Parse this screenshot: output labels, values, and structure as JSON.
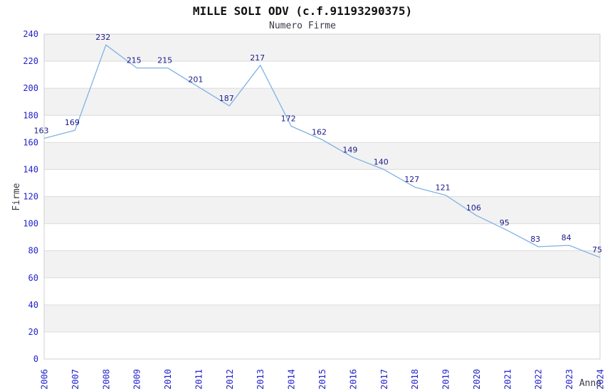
{
  "chart_data": {
    "type": "line",
    "title": "MILLE SOLI ODV (c.f.91193290375)",
    "subtitle": "Numero Firme",
    "xlabel": "Anno",
    "ylabel": "Firme",
    "x": [
      2006,
      2007,
      2008,
      2009,
      2010,
      2011,
      2012,
      2013,
      2014,
      2015,
      2016,
      2017,
      2018,
      2019,
      2020,
      2021,
      2022,
      2023,
      2024
    ],
    "series": [
      {
        "name": "Numero Firme",
        "values": [
          163,
          169,
          232,
          215,
          215,
          201,
          187,
          217,
          172,
          162,
          149,
          140,
          127,
          121,
          106,
          95,
          83,
          84,
          75
        ]
      }
    ],
    "point_labels_visible": true,
    "ylim": [
      0,
      240
    ],
    "ytick_step": 20,
    "grid": "horizontal-only",
    "legend_position": "none",
    "colors": {
      "line": "#7fb2e6",
      "point_label": "#1a1a8c",
      "tick_label": "#2222cc",
      "axis_title": "#3a3a4a",
      "band_gray": "#f2f2f2",
      "gridline": "#dcdcdc",
      "plot_border": "#d0d0d0",
      "title": "#111111",
      "subtitle": "#3a3a4a"
    }
  }
}
